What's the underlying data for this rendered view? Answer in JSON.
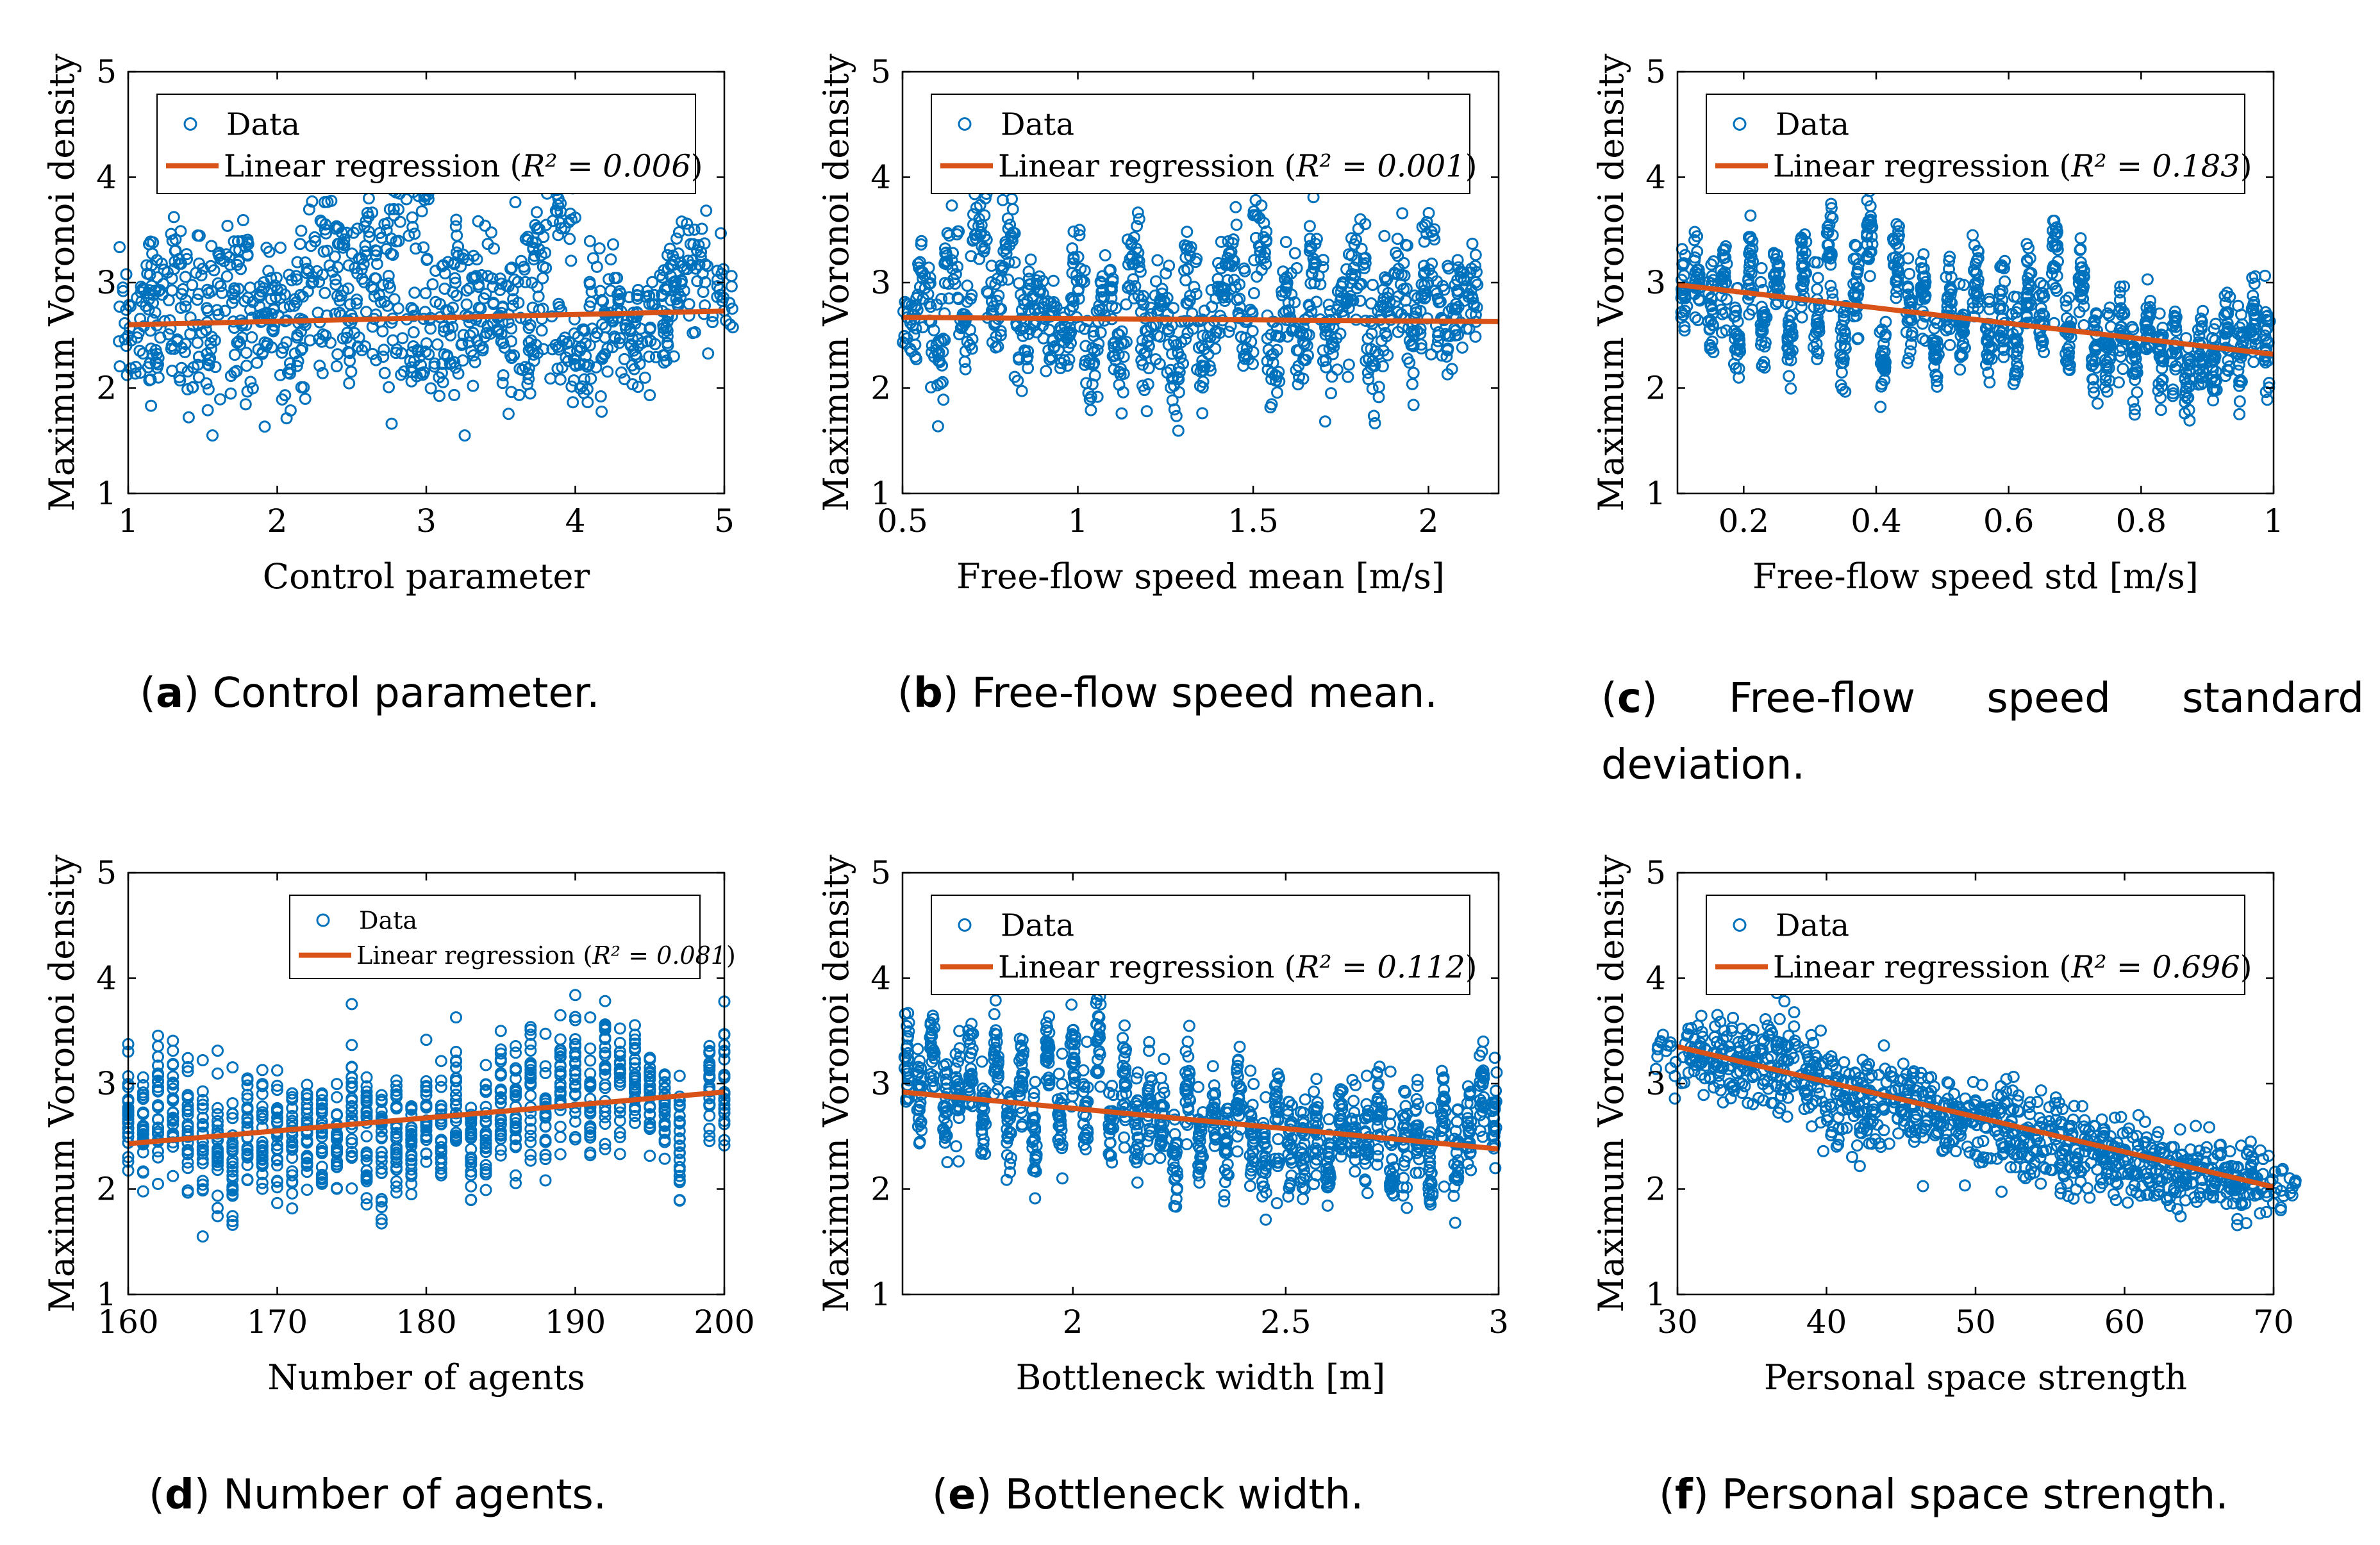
{
  "figure": {
    "ylabel": "Maximum Voronoi density",
    "colors": {
      "data": "#0072BD",
      "regression": "#D95319",
      "axis": "#000000",
      "background": "#ffffff"
    }
  },
  "chart_data": [
    {
      "id": "a",
      "type": "scatter",
      "caption_letter": "a",
      "caption_text": "Control parameter.",
      "xlabel": "Control parameter",
      "ylabel": "Maximum Voronoi density",
      "xlim": [
        1,
        5
      ],
      "ylim": [
        1,
        5
      ],
      "xticks": [
        1,
        2,
        3,
        4,
        5
      ],
      "xtick_labels": [
        "1",
        "2",
        "3",
        "4",
        "5"
      ],
      "yticks": [
        1,
        2,
        3,
        4,
        5
      ],
      "ytick_labels": [
        "1",
        "2",
        "3",
        "4",
        "5"
      ],
      "legend": {
        "data_label": "Data",
        "reg_label_prefix": "Linear regression (",
        "reg_label_r2": "R² = 0.006",
        "reg_label_suffix": ")",
        "position": "top-center"
      },
      "regression": {
        "x": [
          1,
          5
        ],
        "y": [
          2.6,
          2.73
        ],
        "r2": 0.006
      },
      "cluster_centers": [
        [
          1.05,
          2.7
        ],
        [
          1.1,
          2.3
        ],
        [
          1.2,
          3.0
        ],
        [
          1.3,
          2.5
        ],
        [
          1.4,
          3.2
        ],
        [
          1.5,
          2.2
        ],
        [
          1.6,
          2.8
        ],
        [
          1.7,
          3.3
        ],
        [
          1.8,
          2.4
        ],
        [
          1.9,
          2.6
        ],
        [
          2.0,
          3.0
        ],
        [
          2.1,
          2.3
        ],
        [
          2.2,
          2.9
        ],
        [
          2.3,
          3.4
        ],
        [
          2.4,
          2.5
        ],
        [
          2.5,
          3.1
        ],
        [
          2.6,
          2.7
        ],
        [
          2.7,
          3.4
        ],
        [
          2.8,
          2.5
        ],
        [
          2.9,
          3.6
        ],
        [
          3.0,
          2.3
        ],
        [
          3.1,
          2.9
        ],
        [
          3.2,
          2.4
        ],
        [
          3.3,
          3.2
        ],
        [
          3.4,
          2.6
        ],
        [
          3.5,
          2.8
        ],
        [
          3.6,
          2.3
        ],
        [
          3.7,
          3.3
        ],
        [
          3.8,
          2.5
        ],
        [
          3.9,
          3.6
        ],
        [
          4.0,
          2.4
        ],
        [
          4.1,
          2.3
        ],
        [
          4.2,
          3.0
        ],
        [
          4.3,
          2.6
        ],
        [
          4.4,
          2.7
        ],
        [
          4.5,
          2.4
        ],
        [
          4.6,
          3.0
        ],
        [
          4.7,
          2.8
        ],
        [
          4.8,
          3.2
        ],
        [
          4.95,
          2.9
        ]
      ],
      "spread": 0.45,
      "xjitter": 0.03
    },
    {
      "id": "b",
      "type": "scatter",
      "caption_letter": "b",
      "caption_text": "Free-flow speed mean.",
      "xlabel": "Free-flow speed mean [m/s]",
      "ylabel": "Maximum Voronoi density",
      "xlim": [
        0.5,
        2.2
      ],
      "ylim": [
        1,
        5
      ],
      "xticks": [
        0.5,
        1,
        1.5,
        2
      ],
      "xtick_labels": [
        "0.5",
        "1",
        "1.5",
        "2"
      ],
      "yticks": [
        1,
        2,
        3,
        4,
        5
      ],
      "ytick_labels": [
        "1",
        "2",
        "3",
        "4",
        "5"
      ],
      "legend": {
        "data_label": "Data",
        "reg_label_prefix": "Linear regression (",
        "reg_label_r2": "R² = 0.001",
        "reg_label_suffix": ")",
        "position": "top-center"
      },
      "regression": {
        "x": [
          0.5,
          2.2
        ],
        "y": [
          2.67,
          2.63
        ],
        "r2": 0.001
      },
      "cluster_centers": [
        [
          0.52,
          2.5
        ],
        [
          0.56,
          3.0
        ],
        [
          0.6,
          2.3
        ],
        [
          0.64,
          3.3
        ],
        [
          0.68,
          2.6
        ],
        [
          0.72,
          3.5
        ],
        [
          0.76,
          2.8
        ],
        [
          0.8,
          3.4
        ],
        [
          0.84,
          2.5
        ],
        [
          0.88,
          2.9
        ],
        [
          0.92,
          2.6
        ],
        [
          0.96,
          2.4
        ],
        [
          1.0,
          3.0
        ],
        [
          1.04,
          2.2
        ],
        [
          1.08,
          2.8
        ],
        [
          1.12,
          2.3
        ],
        [
          1.16,
          3.2
        ],
        [
          1.2,
          2.5
        ],
        [
          1.24,
          2.7
        ],
        [
          1.28,
          2.2
        ],
        [
          1.32,
          3.0
        ],
        [
          1.36,
          2.4
        ],
        [
          1.4,
          2.8
        ],
        [
          1.44,
          3.2
        ],
        [
          1.48,
          2.6
        ],
        [
          1.52,
          3.4
        ],
        [
          1.56,
          2.3
        ],
        [
          1.6,
          2.9
        ],
        [
          1.64,
          2.5
        ],
        [
          1.68,
          3.1
        ],
        [
          1.72,
          2.4
        ],
        [
          1.76,
          2.8
        ],
        [
          1.8,
          3.2
        ],
        [
          1.84,
          2.3
        ],
        [
          1.88,
          2.7
        ],
        [
          1.92,
          3.0
        ],
        [
          1.96,
          2.5
        ],
        [
          2.0,
          3.1
        ],
        [
          2.04,
          2.6
        ],
        [
          2.08,
          2.8
        ],
        [
          2.12,
          2.9
        ]
      ],
      "spread": 0.45,
      "xjitter": 0.012
    },
    {
      "id": "c",
      "type": "scatter",
      "caption_letter": "c",
      "caption_text": "Free-flow speed standard deviation.",
      "xlabel": "Free-flow speed std [m/s]",
      "ylabel": "Maximum Voronoi density",
      "xlim": [
        0.1,
        1
      ],
      "ylim": [
        1,
        5
      ],
      "xticks": [
        0.2,
        0.4,
        0.6,
        0.8,
        1
      ],
      "xtick_labels": [
        "0.2",
        "0.4",
        "0.6",
        "0.8",
        "1"
      ],
      "yticks": [
        1,
        2,
        3,
        4,
        5
      ],
      "ytick_labels": [
        "1",
        "2",
        "3",
        "4",
        "5"
      ],
      "legend": {
        "data_label": "Data",
        "reg_label_prefix": "Linear regression (",
        "reg_label_r2": "R² = 0.183",
        "reg_label_suffix": ")",
        "position": "top-center"
      },
      "regression": {
        "x": [
          0.1,
          1
        ],
        "y": [
          2.98,
          2.32
        ],
        "r2": 0.183
      },
      "cluster_centers": [
        [
          0.11,
          2.9
        ],
        [
          0.13,
          3.1
        ],
        [
          0.15,
          2.7
        ],
        [
          0.17,
          3.0
        ],
        [
          0.19,
          2.5
        ],
        [
          0.21,
          3.2
        ],
        [
          0.23,
          2.6
        ],
        [
          0.25,
          3.0
        ],
        [
          0.27,
          2.4
        ],
        [
          0.29,
          3.1
        ],
        [
          0.31,
          2.7
        ],
        [
          0.33,
          3.3
        ],
        [
          0.35,
          2.5
        ],
        [
          0.37,
          2.9
        ],
        [
          0.39,
          3.4
        ],
        [
          0.41,
          2.3
        ],
        [
          0.43,
          3.1
        ],
        [
          0.45,
          2.6
        ],
        [
          0.47,
          2.9
        ],
        [
          0.49,
          2.4
        ],
        [
          0.51,
          2.8
        ],
        [
          0.53,
          2.5
        ],
        [
          0.55,
          3.0
        ],
        [
          0.57,
          2.4
        ],
        [
          0.59,
          2.7
        ],
        [
          0.61,
          2.3
        ],
        [
          0.63,
          2.9
        ],
        [
          0.65,
          2.6
        ],
        [
          0.67,
          3.2
        ],
        [
          0.69,
          2.5
        ],
        [
          0.71,
          3.0
        ],
        [
          0.73,
          2.4
        ],
        [
          0.75,
          2.3
        ],
        [
          0.77,
          2.6
        ],
        [
          0.79,
          2.2
        ],
        [
          0.81,
          2.5
        ],
        [
          0.83,
          2.3
        ],
        [
          0.85,
          2.4
        ],
        [
          0.87,
          2.1
        ],
        [
          0.89,
          2.3
        ],
        [
          0.91,
          2.2
        ],
        [
          0.93,
          2.5
        ],
        [
          0.95,
          2.3
        ],
        [
          0.97,
          2.6
        ],
        [
          0.99,
          2.5
        ]
      ],
      "spread": 0.4,
      "xjitter": 0.005
    },
    {
      "id": "d",
      "type": "scatter",
      "caption_letter": "d",
      "caption_text": "Number of agents.",
      "xlabel": "Number of agents",
      "ylabel": "Maximum Voronoi density",
      "xlim": [
        160,
        200
      ],
      "ylim": [
        1,
        5
      ],
      "xticks": [
        160,
        170,
        180,
        190,
        200
      ],
      "xtick_labels": [
        "160",
        "170",
        "180",
        "190",
        "200"
      ],
      "yticks": [
        1,
        2,
        3,
        4,
        5
      ],
      "ytick_labels": [
        "1",
        "2",
        "3",
        "4",
        "5"
      ],
      "legend": {
        "data_label": "Data",
        "reg_label_prefix": "Linear regression (",
        "reg_label_r2": "R² = 0.081",
        "reg_label_suffix": ")",
        "position": "top-right",
        "small": true
      },
      "regression": {
        "x": [
          160,
          200
        ],
        "y": [
          2.43,
          2.92
        ],
        "r2": 0.081
      },
      "cluster_centers": [
        [
          160,
          2.7
        ],
        [
          161,
          2.6
        ],
        [
          162,
          2.8
        ],
        [
          163,
          2.7
        ],
        [
          164,
          2.6
        ],
        [
          165,
          2.4
        ],
        [
          166,
          2.5
        ],
        [
          167,
          2.3
        ],
        [
          168,
          2.6
        ],
        [
          169,
          2.4
        ],
        [
          170,
          2.5
        ],
        [
          171,
          2.5
        ],
        [
          172,
          2.4
        ],
        [
          173,
          2.6
        ],
        [
          174,
          2.5
        ],
        [
          175,
          2.8
        ],
        [
          176,
          2.5
        ],
        [
          177,
          2.3
        ],
        [
          178,
          2.4
        ],
        [
          179,
          2.3
        ],
        [
          180,
          2.7
        ],
        [
          181,
          2.5
        ],
        [
          182,
          2.9
        ],
        [
          183,
          2.4
        ],
        [
          184,
          2.5
        ],
        [
          185,
          2.9
        ],
        [
          186,
          2.8
        ],
        [
          187,
          3.0
        ],
        [
          188,
          2.8
        ],
        [
          189,
          3.0
        ],
        [
          190,
          3.1
        ],
        [
          191,
          2.8
        ],
        [
          192,
          3.1
        ],
        [
          193,
          3.0
        ],
        [
          194,
          3.0
        ],
        [
          195,
          2.9
        ],
        [
          196,
          2.8
        ],
        [
          197,
          2.5
        ],
        [
          199,
          2.9
        ],
        [
          200,
          2.95
        ]
      ],
      "spread": 0.55,
      "xjitter": 0.0
    },
    {
      "id": "e",
      "type": "scatter",
      "caption_letter": "e",
      "caption_text": "Bottleneck width.",
      "xlabel": "Bottleneck width [m]",
      "ylabel": "Maximum Voronoi density",
      "xlim": [
        1.6,
        3
      ],
      "ylim": [
        1,
        5
      ],
      "xticks": [
        2,
        2.5,
        3
      ],
      "xtick_labels": [
        "2",
        "2.5",
        "3"
      ],
      "yticks": [
        1,
        2,
        3,
        4,
        5
      ],
      "ytick_labels": [
        "1",
        "2",
        "3",
        "4",
        "5"
      ],
      "legend": {
        "data_label": "Data",
        "reg_label_prefix": "Linear regression (",
        "reg_label_r2": "R² = 0.112",
        "reg_label_suffix": ")",
        "position": "top-center"
      },
      "regression": {
        "x": [
          1.6,
          3
        ],
        "y": [
          2.92,
          2.38
        ],
        "r2": 0.112
      },
      "cluster_centers": [
        [
          1.61,
          3.2
        ],
        [
          1.64,
          2.8
        ],
        [
          1.67,
          3.3
        ],
        [
          1.7,
          2.7
        ],
        [
          1.73,
          3.0
        ],
        [
          1.76,
          3.2
        ],
        [
          1.79,
          2.7
        ],
        [
          1.82,
          3.3
        ],
        [
          1.85,
          2.6
        ],
        [
          1.88,
          3.1
        ],
        [
          1.91,
          2.5
        ],
        [
          1.94,
          3.3
        ],
        [
          1.97,
          2.6
        ],
        [
          2.0,
          3.2
        ],
        [
          2.03,
          2.7
        ],
        [
          2.06,
          3.4
        ],
        [
          2.09,
          2.6
        ],
        [
          2.12,
          3.0
        ],
        [
          2.15,
          2.5
        ],
        [
          2.18,
          2.8
        ],
        [
          2.21,
          2.6
        ],
        [
          2.24,
          2.3
        ],
        [
          2.27,
          2.9
        ],
        [
          2.3,
          2.4
        ],
        [
          2.33,
          2.7
        ],
        [
          2.36,
          2.4
        ],
        [
          2.39,
          2.9
        ],
        [
          2.42,
          2.5
        ],
        [
          2.45,
          2.3
        ],
        [
          2.48,
          2.7
        ],
        [
          2.51,
          2.4
        ],
        [
          2.54,
          2.3
        ],
        [
          2.57,
          2.6
        ],
        [
          2.6,
          2.2
        ],
        [
          2.63,
          2.6
        ],
        [
          2.66,
          2.4
        ],
        [
          2.69,
          2.5
        ],
        [
          2.72,
          2.7
        ],
        [
          2.75,
          2.3
        ],
        [
          2.78,
          2.4
        ],
        [
          2.81,
          2.5
        ],
        [
          2.84,
          2.2
        ],
        [
          2.87,
          2.7
        ],
        [
          2.9,
          2.2
        ],
        [
          2.93,
          2.6
        ],
        [
          2.96,
          2.9
        ],
        [
          2.99,
          2.6
        ]
      ],
      "spread": 0.45,
      "xjitter": 0.004
    },
    {
      "id": "f",
      "type": "scatter",
      "caption_letter": "f",
      "caption_text": "Personal space strength.",
      "xlabel": "Personal space strength",
      "ylabel": "Maximum Voronoi density",
      "xlim": [
        30,
        70
      ],
      "ylim": [
        1,
        5
      ],
      "xticks": [
        30,
        40,
        50,
        60,
        70
      ],
      "xtick_labels": [
        "30",
        "40",
        "50",
        "60",
        "70"
      ],
      "yticks": [
        1,
        2,
        3,
        4,
        5
      ],
      "ytick_labels": [
        "1",
        "2",
        "3",
        "4",
        "5"
      ],
      "legend": {
        "data_label": "Data",
        "reg_label_prefix": "Linear regression (",
        "reg_label_r2": "R² = 0.696",
        "reg_label_suffix": ")",
        "position": "top-center"
      },
      "regression": {
        "x": [
          30,
          70
        ],
        "y": [
          3.35,
          2.02
        ],
        "r2": 0.696
      },
      "cluster_centers": [
        [
          30.5,
          3.3
        ],
        [
          31.5,
          3.2
        ],
        [
          32.5,
          3.4
        ],
        [
          33.5,
          3.1
        ],
        [
          34.5,
          3.3
        ],
        [
          35.5,
          3.0
        ],
        [
          36.5,
          3.4
        ],
        [
          37.5,
          3.1
        ],
        [
          38.5,
          3.2
        ],
        [
          39.5,
          3.0
        ],
        [
          40.5,
          2.9
        ],
        [
          41.5,
          2.6
        ],
        [
          42.5,
          2.9
        ],
        [
          43.5,
          2.8
        ],
        [
          44.5,
          3.0
        ],
        [
          45.5,
          2.7
        ],
        [
          46.5,
          2.8
        ],
        [
          47.5,
          2.6
        ],
        [
          48.5,
          2.7
        ],
        [
          49.5,
          2.5
        ],
        [
          50.5,
          2.7
        ],
        [
          51.5,
          2.6
        ],
        [
          52.5,
          2.5
        ],
        [
          53.5,
          2.6
        ],
        [
          54.5,
          2.3
        ],
        [
          55.5,
          2.5
        ],
        [
          56.5,
          2.4
        ],
        [
          57.5,
          2.2
        ],
        [
          58.5,
          2.4
        ],
        [
          59.5,
          2.3
        ],
        [
          60.5,
          2.2
        ],
        [
          61.5,
          2.3
        ],
        [
          62.5,
          2.1
        ],
        [
          63.5,
          2.2
        ],
        [
          64.5,
          2.2
        ],
        [
          65.5,
          2.1
        ],
        [
          66.5,
          2.2
        ],
        [
          67.5,
          1.95
        ],
        [
          68.5,
          2.05
        ],
        [
          69.5,
          2.1
        ]
      ],
      "spread": 0.3,
      "xjitter": 0.05
    }
  ]
}
